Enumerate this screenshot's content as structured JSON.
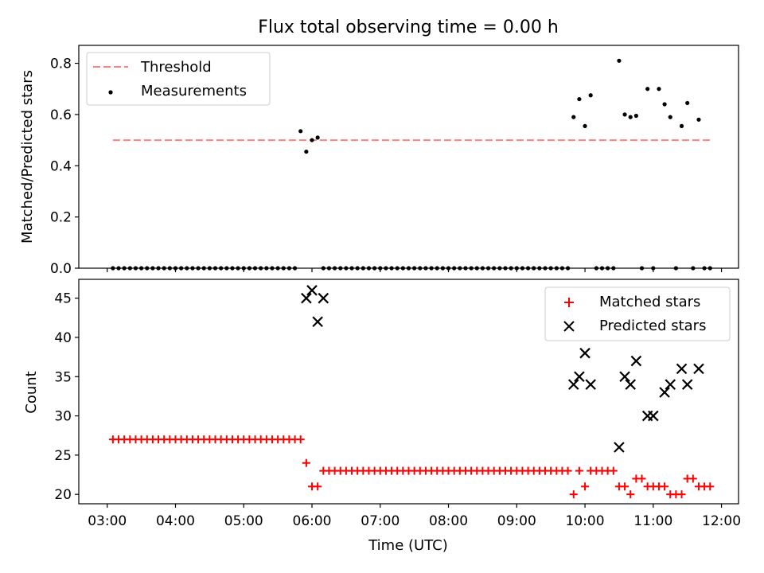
{
  "chart_data": [
    {
      "type": "scatter",
      "title": "Flux total observing time = 0.00 h",
      "ylabel": "Matched/Predicted stars",
      "xlabel": "",
      "xlim": [
        "02:35",
        "12:15"
      ],
      "ylim": [
        0,
        0.87
      ],
      "yticks": [
        "0.0",
        "0.2",
        "0.4",
        "0.6",
        "0.8"
      ],
      "legend_position": "top-left",
      "colors": {
        "threshold": "#ff8080",
        "measurements": "#000000"
      },
      "series": [
        {
          "name": "Threshold",
          "kind": "dashed-line",
          "x": [
            "03:05",
            "11:50"
          ],
          "y": [
            0.5,
            0.5
          ]
        },
        {
          "name": "Measurements",
          "kind": "points",
          "x": [
            "03:05",
            "03:10",
            "03:15",
            "03:20",
            "03:25",
            "03:30",
            "03:35",
            "03:40",
            "03:45",
            "03:50",
            "03:55",
            "04:00",
            "04:05",
            "04:10",
            "04:15",
            "04:20",
            "04:25",
            "04:30",
            "04:35",
            "04:40",
            "04:45",
            "04:50",
            "04:55",
            "05:00",
            "05:05",
            "05:10",
            "05:15",
            "05:20",
            "05:25",
            "05:30",
            "05:35",
            "05:40",
            "05:45",
            "05:50",
            "05:55",
            "06:00",
            "06:05",
            "06:10",
            "06:15",
            "06:20",
            "06:25",
            "06:30",
            "06:35",
            "06:40",
            "06:45",
            "06:50",
            "06:55",
            "07:00",
            "07:05",
            "07:10",
            "07:15",
            "07:20",
            "07:25",
            "07:30",
            "07:35",
            "07:40",
            "07:45",
            "07:50",
            "07:55",
            "08:00",
            "08:05",
            "08:10",
            "08:15",
            "08:20",
            "08:25",
            "08:30",
            "08:35",
            "08:40",
            "08:45",
            "08:50",
            "08:55",
            "09:00",
            "09:05",
            "09:10",
            "09:15",
            "09:20",
            "09:25",
            "09:30",
            "09:35",
            "09:40",
            "09:45",
            "09:50",
            "09:55",
            "10:00",
            "10:05",
            "10:10",
            "10:15",
            "10:20",
            "10:25",
            "10:30",
            "10:35",
            "10:40",
            "10:45",
            "10:50",
            "10:55",
            "11:00",
            "11:05",
            "11:10",
            "11:15",
            "11:20",
            "11:25",
            "11:30",
            "11:35",
            "11:40",
            "11:45",
            "11:50"
          ],
          "y": [
            0,
            0,
            0,
            0,
            0,
            0,
            0,
            0,
            0,
            0,
            0,
            0,
            0,
            0,
            0,
            0,
            0,
            0,
            0,
            0,
            0,
            0,
            0,
            0,
            0,
            0,
            0,
            0,
            0,
            0,
            0,
            0,
            0,
            0.535,
            0.455,
            0.5,
            0.51,
            0,
            0,
            0,
            0,
            0,
            0,
            0,
            0,
            0,
            0,
            0,
            0,
            0,
            0,
            0,
            0,
            0,
            0,
            0,
            0,
            0,
            0,
            0,
            0,
            0,
            0,
            0,
            0,
            0,
            0,
            0,
            0,
            0,
            0,
            0,
            0,
            0,
            0,
            0,
            0,
            0,
            0,
            0,
            0,
            0.59,
            0.66,
            0.555,
            0.675,
            0,
            0,
            0,
            0,
            0.81,
            0.6,
            0.59,
            0.595,
            0,
            0.7,
            0,
            0.7,
            0.64,
            0.59,
            0,
            0.555,
            0.645,
            0,
            0.58,
            0,
            0
          ]
        }
      ]
    },
    {
      "type": "scatter",
      "title": "",
      "ylabel": "Count",
      "xlabel": "Time (UTC)",
      "xlim": [
        "02:35",
        "12:15"
      ],
      "ylim": [
        18.8,
        47.4
      ],
      "xticks": [
        "03:00",
        "04:00",
        "05:00",
        "06:00",
        "07:00",
        "08:00",
        "09:00",
        "10:00",
        "11:00",
        "12:00"
      ],
      "yticks": [
        "20",
        "25",
        "30",
        "35",
        "40",
        "45"
      ],
      "legend_position": "top-right",
      "colors": {
        "matched": "#ff0000",
        "predicted": "#000000"
      },
      "series": [
        {
          "name": "Matched stars",
          "marker": "plus",
          "x": [
            "03:05",
            "03:10",
            "03:15",
            "03:20",
            "03:25",
            "03:30",
            "03:35",
            "03:40",
            "03:45",
            "03:50",
            "03:55",
            "04:00",
            "04:05",
            "04:10",
            "04:15",
            "04:20",
            "04:25",
            "04:30",
            "04:35",
            "04:40",
            "04:45",
            "04:50",
            "04:55",
            "05:00",
            "05:05",
            "05:10",
            "05:15",
            "05:20",
            "05:25",
            "05:30",
            "05:35",
            "05:40",
            "05:45",
            "05:50",
            "05:55",
            "06:00",
            "06:05",
            "06:10",
            "06:15",
            "06:20",
            "06:25",
            "06:30",
            "06:35",
            "06:40",
            "06:45",
            "06:50",
            "06:55",
            "07:00",
            "07:05",
            "07:10",
            "07:15",
            "07:20",
            "07:25",
            "07:30",
            "07:35",
            "07:40",
            "07:45",
            "07:50",
            "07:55",
            "08:00",
            "08:05",
            "08:10",
            "08:15",
            "08:20",
            "08:25",
            "08:30",
            "08:35",
            "08:40",
            "08:45",
            "08:50",
            "08:55",
            "09:00",
            "09:05",
            "09:10",
            "09:15",
            "09:20",
            "09:25",
            "09:30",
            "09:35",
            "09:40",
            "09:45",
            "09:50",
            "09:55",
            "10:00",
            "10:05",
            "10:10",
            "10:15",
            "10:20",
            "10:25",
            "10:30",
            "10:35",
            "10:40",
            "10:45",
            "10:50",
            "10:55",
            "11:00",
            "11:05",
            "11:10",
            "11:15",
            "11:20",
            "11:25",
            "11:30",
            "11:35",
            "11:40",
            "11:45",
            "11:50"
          ],
          "y": [
            27,
            27,
            27,
            27,
            27,
            27,
            27,
            27,
            27,
            27,
            27,
            27,
            27,
            27,
            27,
            27,
            27,
            27,
            27,
            27,
            27,
            27,
            27,
            27,
            27,
            27,
            27,
            27,
            27,
            27,
            27,
            27,
            27,
            27,
            24,
            21,
            21,
            23,
            23,
            23,
            23,
            23,
            23,
            23,
            23,
            23,
            23,
            23,
            23,
            23,
            23,
            23,
            23,
            23,
            23,
            23,
            23,
            23,
            23,
            23,
            23,
            23,
            23,
            23,
            23,
            23,
            23,
            23,
            23,
            23,
            23,
            23,
            23,
            23,
            23,
            23,
            23,
            23,
            23,
            23,
            23,
            20,
            23,
            21,
            23,
            23,
            23,
            23,
            23,
            21,
            21,
            20,
            22,
            22,
            21,
            21,
            21,
            21,
            20,
            20,
            20,
            22,
            22,
            21,
            21,
            21
          ]
        },
        {
          "name": "Predicted stars",
          "marker": "x",
          "x": [
            "05:55",
            "06:00",
            "06:05",
            "06:10",
            "09:50",
            "09:55",
            "10:00",
            "10:05",
            "10:30",
            "10:35",
            "10:40",
            "10:45",
            "10:55",
            "11:00",
            "11:10",
            "11:15",
            "11:25",
            "11:30",
            "11:40"
          ],
          "y": [
            45,
            46,
            42,
            45,
            34,
            35,
            38,
            34,
            26,
            35,
            34,
            37,
            30,
            30,
            33,
            34,
            36,
            34,
            36
          ]
        }
      ]
    }
  ]
}
